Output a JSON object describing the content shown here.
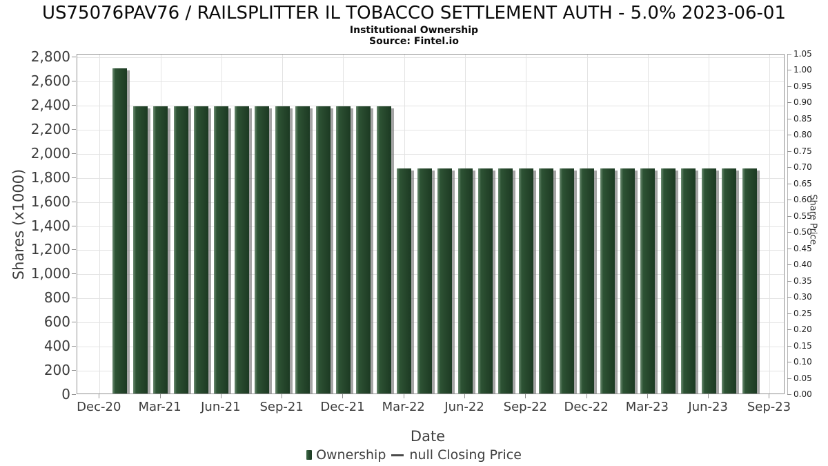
{
  "header": {
    "title": "US75076PAV76 / RAILSPLITTER IL TOBACCO SETTLEMENT AUTH - 5.0% 2023-06-01",
    "subtitle": "Institutional Ownership",
    "source": "Source: Fintel.io"
  },
  "legend": {
    "items": [
      {
        "label": "Ownership",
        "marker": "bar",
        "color": "#24462b"
      },
      {
        "label": "null Closing Price",
        "marker": "line",
        "color": "#4a4a4a"
      }
    ]
  },
  "colors": {
    "bar_main": "#2d5334",
    "bar_highlight": "#6b8b71",
    "bar_shadow": "#828282",
    "gridline": "#e3e3e3",
    "plot_border": "#8f8f8f",
    "text": "#3b3b3b"
  },
  "chart_data": {
    "type": "bar",
    "title": "US75076PAV76 / RAILSPLITTER IL TOBACCO SETTLEMENT AUTH - 5.0% 2023-06-01",
    "subtitle": "Institutional Ownership",
    "source": "Source: Fintel.io",
    "xlabel": "Date",
    "ylabel_left": "Shares (x1000)",
    "ylabel_right": "Share Price",
    "grid": true,
    "legend_position": "bottom",
    "categories": [
      "Jan-21",
      "Feb-21",
      "Mar-21",
      "Apr-21",
      "May-21",
      "Jun-21",
      "Jul-21",
      "Aug-21",
      "Sep-21",
      "Oct-21",
      "Nov-21",
      "Dec-21",
      "Jan-22",
      "Feb-22",
      "Mar-22",
      "Apr-22",
      "May-22",
      "Jun-22",
      "Jul-22",
      "Aug-22",
      "Sep-22",
      "Oct-22",
      "Nov-22",
      "Dec-22",
      "Jan-23",
      "Feb-23",
      "Mar-23",
      "Apr-23",
      "May-23",
      "Jun-23",
      "Jul-23",
      "Aug-23"
    ],
    "series": [
      {
        "name": "Ownership",
        "units": "shares x1000",
        "values": [
          2695,
          2385,
          2385,
          2385,
          2385,
          2385,
          2385,
          2385,
          2385,
          2385,
          2385,
          2385,
          2385,
          2385,
          1865,
          1865,
          1865,
          1865,
          1865,
          1865,
          1865,
          1865,
          1865,
          1865,
          1865,
          1865,
          1865,
          1865,
          1865,
          1865,
          1865,
          1865
        ]
      },
      {
        "name": "null Closing Price",
        "units": "share price",
        "values": null
      }
    ],
    "x_ticks": [
      "Dec-20",
      "Mar-21",
      "Jun-21",
      "Sep-21",
      "Dec-21",
      "Mar-22",
      "Jun-22",
      "Sep-22",
      "Dec-22",
      "Mar-23",
      "Jun-23",
      "Sep-23"
    ],
    "y_left": {
      "min": 0,
      "max": 2800,
      "step": 200,
      "display_max": 2823,
      "tick_labels": [
        "0",
        "200",
        "400",
        "600",
        "800",
        "1,000",
        "1,200",
        "1,400",
        "1,600",
        "1,800",
        "2,000",
        "2,200",
        "2,400",
        "2,600",
        "2,800"
      ]
    },
    "y_right": {
      "min": 0.0,
      "max": 1.05,
      "step": 0.05,
      "tick_labels": [
        "0.00",
        "0.05",
        "0.10",
        "0.15",
        "0.20",
        "0.25",
        "0.30",
        "0.35",
        "0.40",
        "0.45",
        "0.50",
        "0.55",
        "0.60",
        "0.65",
        "0.70",
        "0.75",
        "0.80",
        "0.85",
        "0.90",
        "0.95",
        "1.00",
        "1.05"
      ]
    }
  }
}
